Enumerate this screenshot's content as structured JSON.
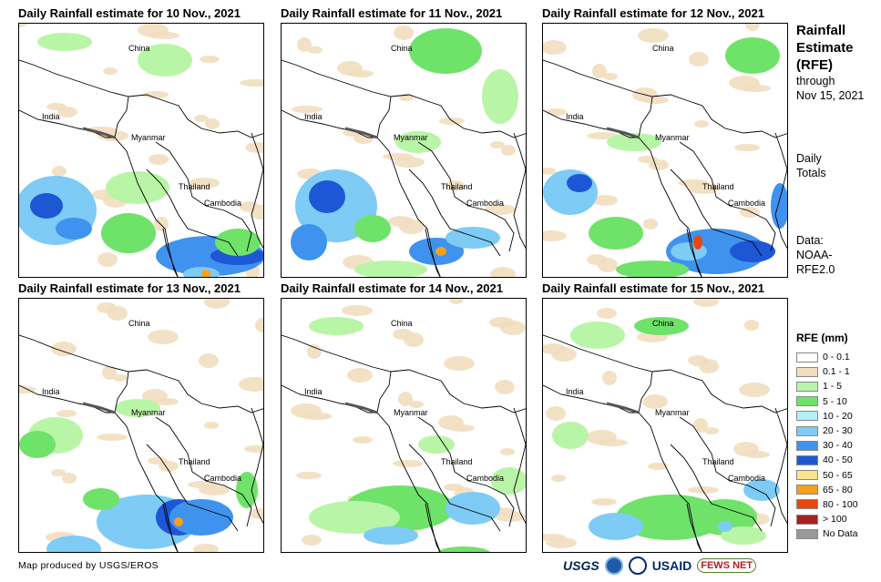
{
  "panels": [
    {
      "title": "Daily Rainfall estimate for 10 Nov., 2021",
      "labels": {
        "china": "China",
        "india": "India",
        "myanmar": "Myanmar",
        "thailand": "Thailand",
        "cambodia": "Cambodia"
      }
    },
    {
      "title": "Daily Rainfall estimate for 11 Nov., 2021",
      "labels": {
        "china": "China",
        "india": "India",
        "myanmar": "Myanmar",
        "thailand": "Thailand",
        "cambodia": "Cambodia"
      }
    },
    {
      "title": "Daily Rainfall estimate for 12 Nov., 2021",
      "labels": {
        "china": "China",
        "india": "India",
        "myanmar": "Myanmar",
        "thailand": "Thailand",
        "cambodia": "Cambodia"
      }
    },
    {
      "title": "Daily Rainfall estimate for 13 Nov., 2021",
      "labels": {
        "china": "China",
        "india": "India",
        "myanmar": "Myanmar",
        "thailand": "Thailand",
        "cambodia": "Cambodia"
      }
    },
    {
      "title": "Daily Rainfall estimate for 14 Nov., 2021",
      "labels": {
        "china": "China",
        "india": "India",
        "myanmar": "Myanmar",
        "thailand": "Thailand",
        "cambodia": "Cambodia"
      }
    },
    {
      "title": "Daily Rainfall estimate for 15 Nov., 2021",
      "labels": {
        "china": "China",
        "india": "India",
        "myanmar": "Myanmar",
        "thailand": "Thailand",
        "cambodia": "Cambodia"
      }
    }
  ],
  "side": {
    "title_line1": "Rainfall",
    "title_line2": "Estimate",
    "title_line3": "(RFE)",
    "through_line1": "through",
    "through_line2": "Nov 15, 2021",
    "daily_line1": "Daily",
    "daily_line2": "Totals",
    "data_line1": "Data:",
    "data_line2": "NOAA-",
    "data_line3": "RFE2.0"
  },
  "legend": {
    "title": "RFE (mm)",
    "items": [
      {
        "label": "0 - 0.1",
        "color": "#ffffff"
      },
      {
        "label": "0.1 - 1",
        "color": "#f1dcbc"
      },
      {
        "label": "1 - 5",
        "color": "#b9f5a6"
      },
      {
        "label": "5 - 10",
        "color": "#6fe26a"
      },
      {
        "label": "10 - 20",
        "color": "#b7eef9"
      },
      {
        "label": "20 - 30",
        "color": "#7ecbf5"
      },
      {
        "label": "30 - 40",
        "color": "#3f93ee"
      },
      {
        "label": "40 - 50",
        "color": "#1e57d6"
      },
      {
        "label": "50 - 65",
        "color": "#fae58a"
      },
      {
        "label": "65 - 80",
        "color": "#f6a01c"
      },
      {
        "label": "80 - 100",
        "color": "#e8480f"
      },
      {
        "label": "> 100",
        "color": "#a8211f"
      },
      {
        "label": "No Data",
        "color": "#999999"
      }
    ]
  },
  "credit": "Map produced by USGS/EROS",
  "logos": {
    "usgs": "USGS",
    "usaid": "USAID",
    "fews": "FEWS NET"
  }
}
